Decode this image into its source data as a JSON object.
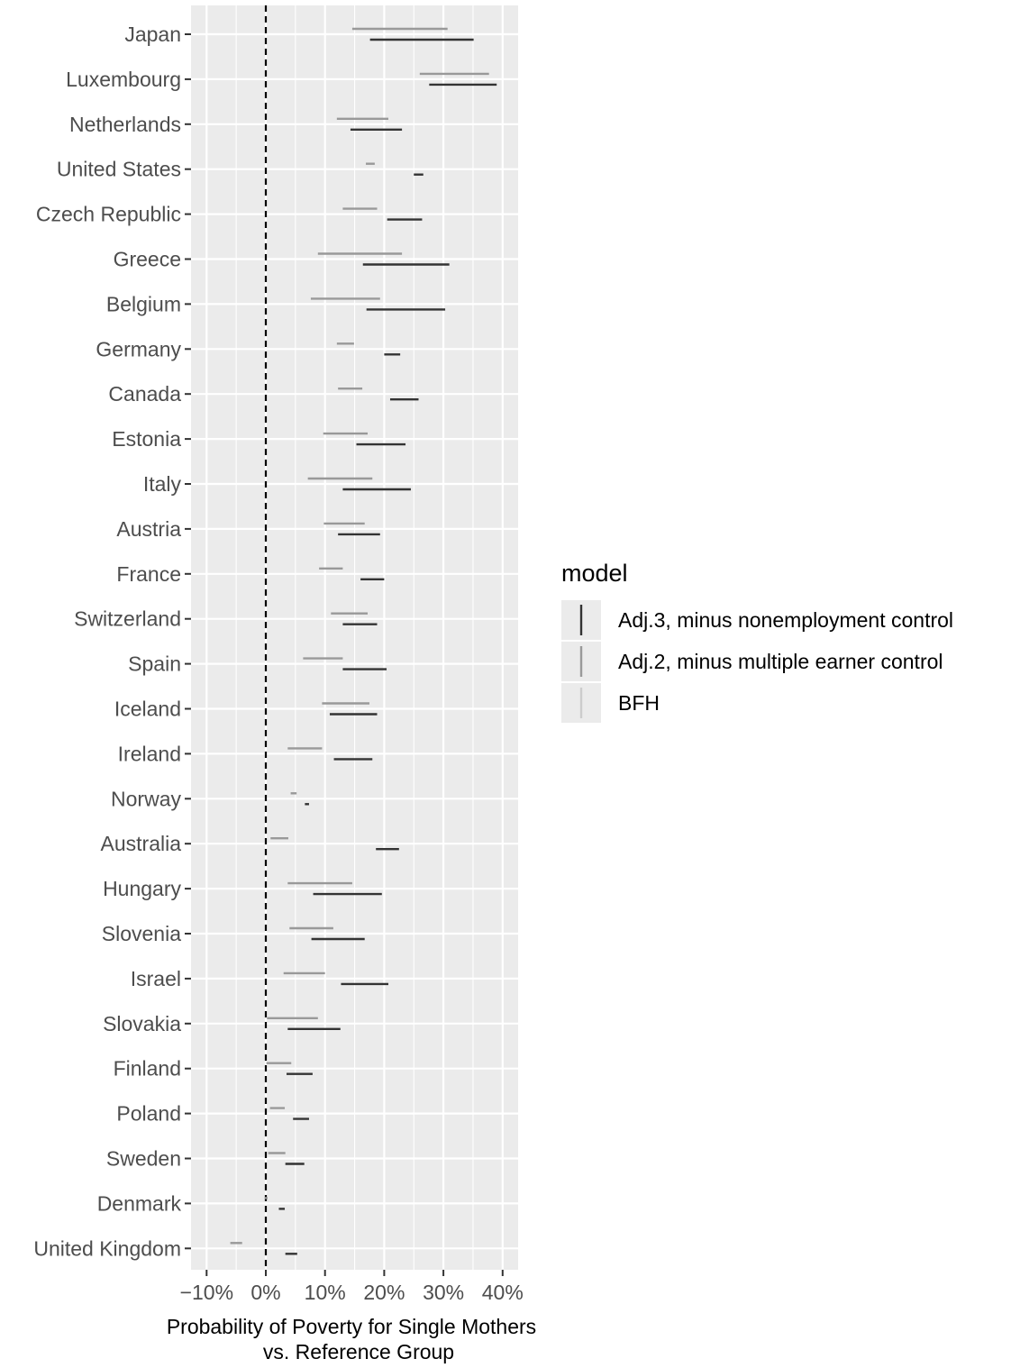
{
  "chart_data": {
    "type": "errorbar",
    "xlabel": [
      "Probability of Poverty for Single Mothers",
      "vs. Reference Group"
    ],
    "ylabel": "",
    "xlim": [
      -0.13,
      0.42
    ],
    "x_ticks": [
      -0.1,
      0,
      0.1,
      0.2,
      0.3,
      0.4
    ],
    "x_tick_labels": [
      "−10%",
      "0%",
      "10%",
      "20%",
      "30%",
      "40%"
    ],
    "reference_line": 0,
    "grid": true,
    "categories": [
      "Japan",
      "Luxembourg",
      "Netherlands",
      "United States",
      "Czech Republic",
      "Greece",
      "Belgium",
      "Germany",
      "Canada",
      "Estonia ",
      "Italy",
      "Austria",
      "France",
      "Switzerland",
      "Spain",
      "Iceland",
      "Ireland",
      "Norway",
      "Australia",
      "Hungary ",
      "Slovenia",
      "Israel",
      "Slovakia",
      "Finland",
      "Poland",
      "Sweden",
      "Denmark",
      "United Kingdom"
    ],
    "series": [
      {
        "name": "Adj.3, minus nonemployment control",
        "color": "#333333",
        "intervals": [
          [
            0.176,
            0.351
          ],
          [
            0.276,
            0.39
          ],
          [
            0.143,
            0.23
          ],
          [
            0.25,
            0.266
          ],
          [
            0.205,
            0.264
          ],
          [
            0.164,
            0.31
          ],
          [
            0.17,
            0.303
          ],
          [
            0.2,
            0.227
          ],
          [
            0.21,
            0.258
          ],
          [
            0.153,
            0.236
          ],
          [
            0.13,
            0.245
          ],
          [
            0.122,
            0.193
          ],
          [
            0.16,
            0.2
          ],
          [
            0.13,
            0.188
          ],
          [
            0.13,
            0.204
          ],
          [
            0.108,
            0.188
          ],
          [
            0.115,
            0.18
          ],
          [
            0.066,
            0.073
          ],
          [
            0.186,
            0.225
          ],
          [
            0.08,
            0.196
          ],
          [
            0.077,
            0.167
          ],
          [
            0.127,
            0.207
          ],
          [
            0.037,
            0.126
          ],
          [
            0.035,
            0.079
          ],
          [
            0.046,
            0.073
          ],
          [
            0.033,
            0.065
          ],
          [
            0.022,
            0.032
          ],
          [
            0.033,
            0.053
          ]
        ]
      },
      {
        "name": "Adj.2, minus multiple earner control",
        "color": "#999999",
        "intervals": [
          [
            0.146,
            0.307
          ],
          [
            0.26,
            0.377
          ],
          [
            0.12,
            0.207
          ],
          [
            0.169,
            0.184
          ],
          [
            0.13,
            0.188
          ],
          [
            0.088,
            0.23
          ],
          [
            0.076,
            0.193
          ],
          [
            0.12,
            0.149
          ],
          [
            0.122,
            0.163
          ],
          [
            0.097,
            0.172
          ],
          [
            0.071,
            0.18
          ],
          [
            0.098,
            0.167
          ],
          [
            0.09,
            0.13
          ],
          [
            0.11,
            0.172
          ],
          [
            0.063,
            0.13
          ],
          [
            0.095,
            0.175
          ],
          [
            0.037,
            0.095
          ],
          [
            0.042,
            0.052
          ],
          [
            0.008,
            0.038
          ],
          [
            0.037,
            0.146
          ],
          [
            0.04,
            0.114
          ],
          [
            0.03,
            0.1
          ],
          [
            0.002,
            0.088
          ],
          [
            0.001,
            0.043
          ],
          [
            0.007,
            0.032
          ],
          [
            0.004,
            0.033
          ],
          [
            -0.002,
            0.003
          ],
          [
            -0.06,
            -0.04
          ]
        ]
      },
      {
        "name": "BFH",
        "color": "#cccccc",
        "intervals": []
      }
    ],
    "legend": {
      "title": "model",
      "position": "right",
      "items": [
        {
          "label": "Adj.3, minus nonemployment control",
          "color": "#333333"
        },
        {
          "label": "Adj.2, minus multiple earner control",
          "color": "#999999"
        },
        {
          "label": "BFH",
          "color": "#cccccc"
        }
      ]
    }
  }
}
